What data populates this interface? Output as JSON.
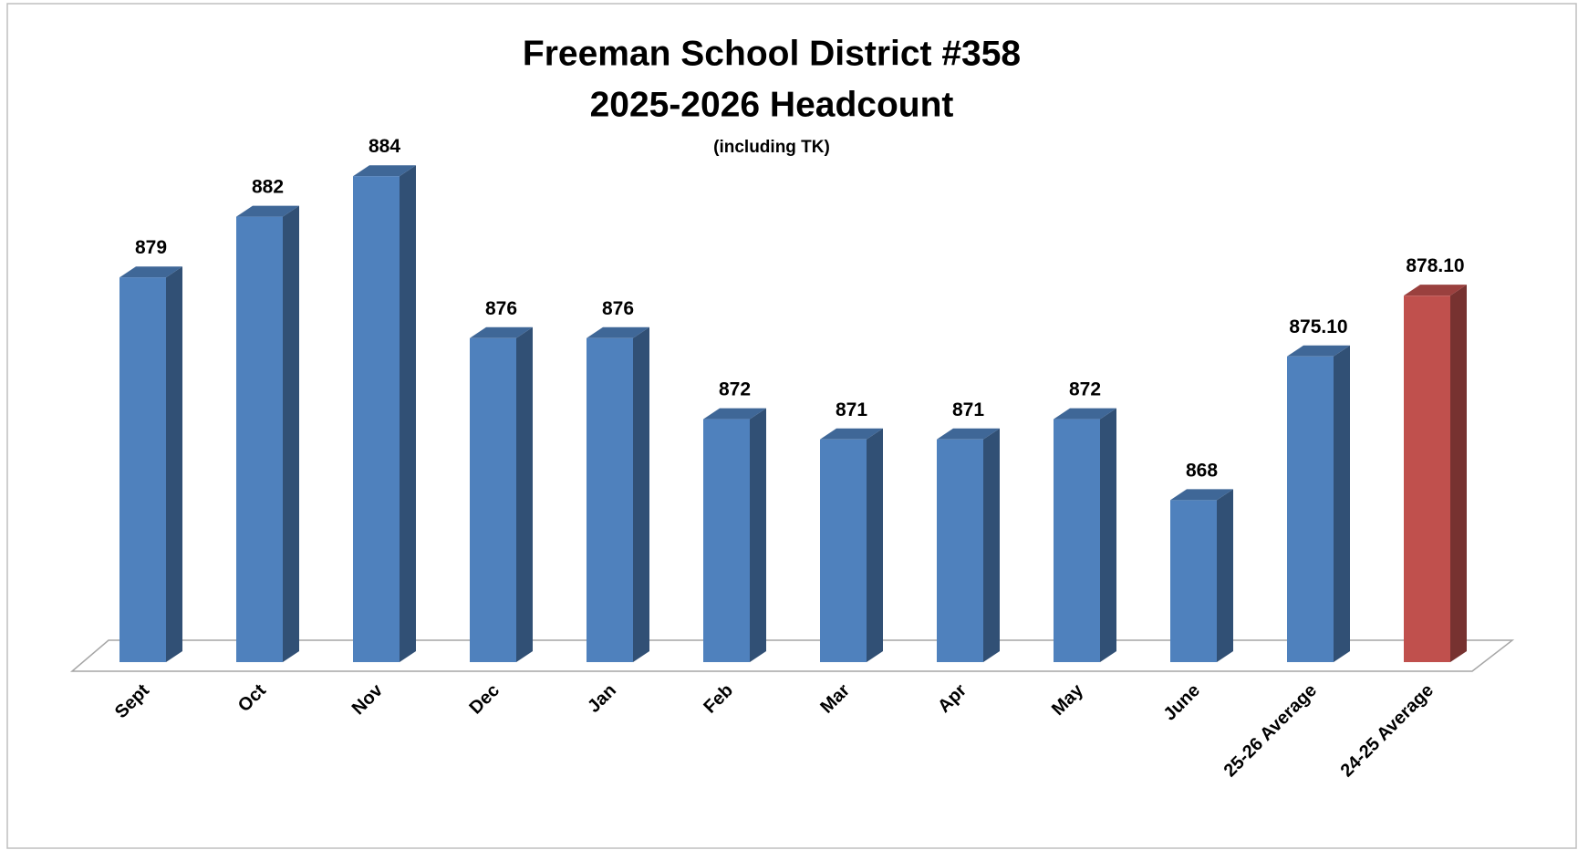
{
  "chart_data": {
    "type": "bar3d",
    "title": "Freeman School District #358",
    "subtitle": "2025-2026  Headcount",
    "note": "(including TK)",
    "categories": [
      "Sept",
      "Oct",
      "Nov",
      "Dec",
      "Jan",
      "Feb",
      "Mar",
      "Apr",
      "May",
      "June",
      "25-26 Average",
      "24-25 Average"
    ],
    "values": [
      879,
      882,
      884,
      876,
      876,
      872,
      871,
      871,
      872,
      868,
      875.1,
      878.1
    ],
    "value_labels": [
      "879",
      "882",
      "884",
      "876",
      "876",
      "872",
      "871",
      "871",
      "872",
      "868",
      "875.10",
      "878.10"
    ],
    "colors": [
      "#4f81bd",
      "#4f81bd",
      "#4f81bd",
      "#4f81bd",
      "#4f81bd",
      "#4f81bd",
      "#4f81bd",
      "#4f81bd",
      "#4f81bd",
      "#4f81bd",
      "#4f81bd",
      "#c0504d"
    ],
    "ylim": [
      860,
      885
    ]
  }
}
